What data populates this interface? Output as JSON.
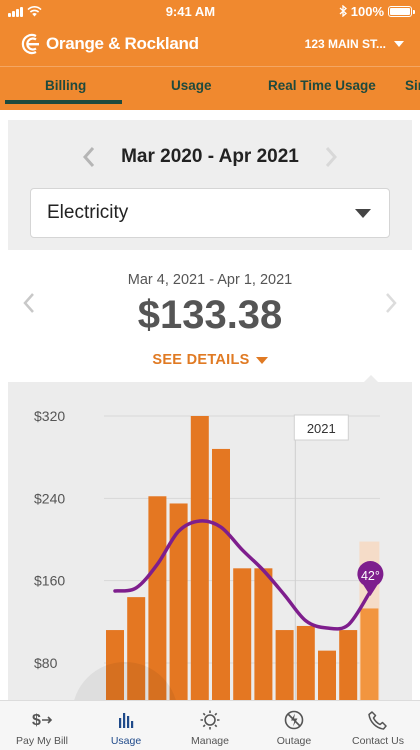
{
  "status_bar": {
    "time": "9:41 AM",
    "battery": "100%"
  },
  "header": {
    "brand": "Orange & Rockland",
    "account_address": "123 MAIN ST..."
  },
  "tabs": [
    {
      "label": "Billing",
      "active": true
    },
    {
      "label": "Usage",
      "active": false
    },
    {
      "label": "Real Time Usage",
      "active": false
    },
    {
      "label": "Sir",
      "active": false
    }
  ],
  "period": {
    "label": "Mar 2020 - Apr 2021"
  },
  "utility_select": {
    "value": "Electricity"
  },
  "bill": {
    "date_range": "Mar 4, 2021 - Apr 1, 2021",
    "amount": "$133.38",
    "details_link": "SEE DETAILS"
  },
  "chart_data": {
    "type": "bar",
    "y_ticks": [
      "$80",
      "$160",
      "$240",
      "$320"
    ],
    "year_marker": "2021",
    "temperature_badge": "42°",
    "bar_values": [
      112,
      144,
      242,
      235,
      320,
      288,
      172,
      172,
      112,
      116,
      92,
      112,
      133
    ],
    "highlight_value": 198,
    "ylim": [
      40,
      345
    ],
    "temperature_curve": [
      150,
      153,
      176,
      208,
      218,
      212,
      190,
      170,
      146,
      121,
      114,
      117,
      148
    ],
    "colors": {
      "bar": "#e47722",
      "bar_selected": "#f2953f",
      "highlight": "#f5dcc8",
      "temperature": "#7e1e8d"
    }
  },
  "bottom_nav": [
    {
      "label": "Pay My Bill",
      "icon": "pay-bill-icon"
    },
    {
      "label": "Usage",
      "icon": "usage-bars-icon",
      "active": true
    },
    {
      "label": "Manage",
      "icon": "gear-sun-icon"
    },
    {
      "label": "Outage",
      "icon": "outage-icon"
    },
    {
      "label": "Contact Us",
      "icon": "phone-icon"
    }
  ]
}
